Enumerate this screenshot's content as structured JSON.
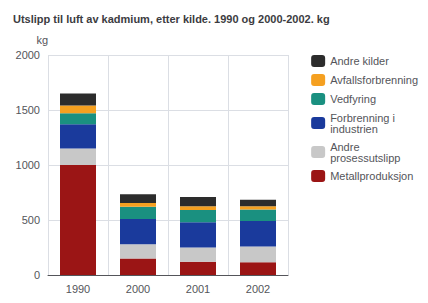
{
  "chart_data": {
    "type": "bar",
    "title": "Utslipp til luft av kadmium, etter kilde. 1990 og 2000-2002. kg",
    "ylabel": "kg",
    "categories": [
      "1990",
      "2000",
      "2001",
      "2002"
    ],
    "series": [
      {
        "name": "Metallproduksjon",
        "color": "#9B1515",
        "values": [
          1000,
          150,
          120,
          115
        ]
      },
      {
        "name": "Andre\nprosessutslipp",
        "color": "#C8C8C8",
        "values": [
          150,
          130,
          130,
          145
        ]
      },
      {
        "name": "Forbrenning i\nindustrien",
        "color": "#1A3A9C",
        "values": [
          220,
          230,
          230,
          230
        ]
      },
      {
        "name": "Vedfyring",
        "color": "#1A9080",
        "values": [
          100,
          110,
          110,
          105
        ]
      },
      {
        "name": "Avfallsforbrenning",
        "color": "#F5A020",
        "values": [
          70,
          35,
          35,
          30
        ]
      },
      {
        "name": "Andre kilder",
        "color": "#2C2C2C",
        "values": [
          110,
          80,
          85,
          60
        ]
      }
    ],
    "stacked": true,
    "ylim": [
      0,
      2000
    ],
    "yticks": [
      0,
      500,
      1000,
      1500,
      2000
    ],
    "grid": true,
    "legend": "right"
  }
}
